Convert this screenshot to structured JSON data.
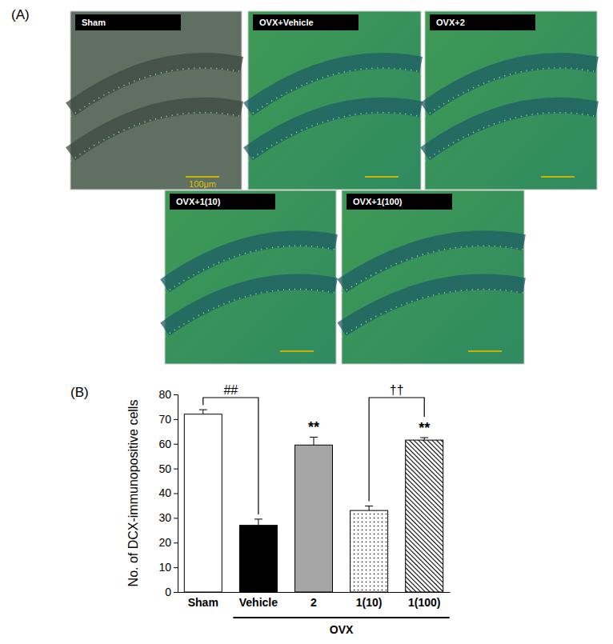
{
  "chart_data": {
    "type": "bar",
    "y_label": "No. of DCX-immunopositive cells",
    "categories": [
      "Sham",
      "Vehicle",
      "2",
      "1(10)",
      "1(100)"
    ],
    "values": [
      72,
      27,
      59.5,
      33,
      61.5
    ],
    "errors": [
      1.8,
      2.5,
      3.2,
      1.8,
      1.0
    ],
    "colors": [
      "#ffffff",
      "#000000",
      "#a6a6a6",
      "#ffffff",
      "#ffffff"
    ],
    "ylim": [
      0,
      80
    ],
    "yticks": [
      0,
      10,
      20,
      30,
      40,
      50,
      60,
      70,
      80
    ],
    "group_label": {
      "text": "OVX",
      "categories": [
        "Vehicle",
        "2",
        "1(10)",
        "1(100)"
      ]
    },
    "annotations": [
      {
        "text": "##",
        "between": [
          "Sham",
          "Vehicle"
        ]
      },
      {
        "text": "**",
        "at": "2"
      },
      {
        "text": "††",
        "between": [
          "1(10)",
          "1(100)"
        ]
      },
      {
        "text": "**",
        "at": "1(100)"
      }
    ]
  },
  "figure": {
    "panel_labels": [
      "(A)",
      "(B)"
    ],
    "images": [
      "Sham",
      "OVX+Vehicle",
      "OVX+2",
      "OVX+1(10)",
      "OVX+1(100)"
    ],
    "scale_bar": "100μm"
  }
}
